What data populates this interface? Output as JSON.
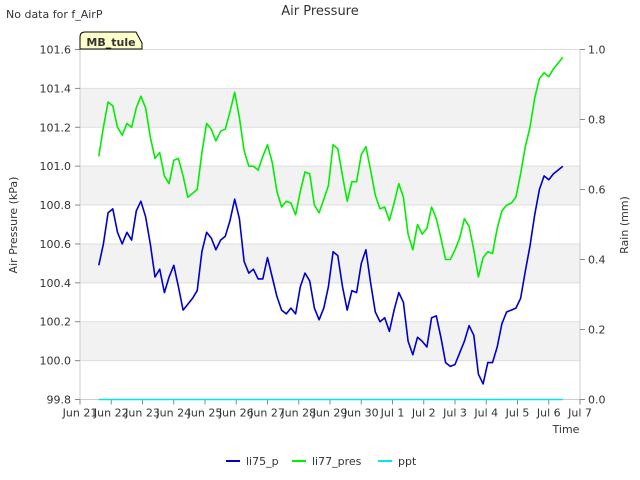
{
  "chart_data": {
    "type": "line",
    "title": "Air Pressure",
    "corner_note": "No data for f_AirP",
    "site_badge": "MB_tule",
    "xlabel": "Time",
    "ylabel_left": "Air Pressure (kPa)",
    "ylabel_right": "Rain (mm)",
    "x_range_days": [
      0,
      16
    ],
    "x_tick_days": [
      0,
      1,
      2,
      3,
      4,
      5,
      6,
      7,
      8,
      9,
      10,
      11,
      12,
      13,
      14,
      15,
      16
    ],
    "x_tick_labels": [
      "Jun 21",
      "Jun 22",
      "Jun 23",
      "Jun 24",
      "Jun 25",
      "Jun 26",
      "Jun 27",
      "Jun 28",
      "Jun 29",
      "Jun 30",
      "Jul 1",
      "Jul 2",
      "Jul 3",
      "Jul 4",
      "Jul 5",
      "Jul 6",
      "Jul 7"
    ],
    "ylim_left": [
      99.8,
      101.6
    ],
    "y_ticks_left": [
      "99.8",
      "100.0",
      "100.2",
      "100.4",
      "100.6",
      "100.8",
      "101.0",
      "101.2",
      "101.4",
      "101.6"
    ],
    "ylim_right": [
      0.0,
      1.0
    ],
    "y_ticks_right": [
      "0.0",
      "0.2",
      "0.4",
      "0.6",
      "0.8",
      "1.0"
    ],
    "legend_position": "bottom-center",
    "series": [
      {
        "name": "li75_p",
        "color": "#0000cc",
        "axis": "left",
        "x": [
          0.6,
          0.75,
          0.9,
          1.05,
          1.2,
          1.35,
          1.5,
          1.65,
          1.8,
          1.95,
          2.1,
          2.25,
          2.4,
          2.55,
          2.7,
          2.85,
          3.0,
          3.15,
          3.3,
          3.45,
          3.6,
          3.75,
          3.9,
          4.05,
          4.2,
          4.35,
          4.5,
          4.65,
          4.8,
          4.95,
          5.1,
          5.25,
          5.4,
          5.55,
          5.7,
          5.85,
          6.0,
          6.15,
          6.3,
          6.45,
          6.6,
          6.75,
          6.9,
          7.05,
          7.2,
          7.35,
          7.5,
          7.65,
          7.8,
          7.95,
          8.1,
          8.25,
          8.4,
          8.55,
          8.7,
          8.85,
          9.0,
          9.15,
          9.3,
          9.45,
          9.6,
          9.75,
          9.9,
          10.05,
          10.2,
          10.35,
          10.5,
          10.65,
          10.8,
          10.95,
          11.1,
          11.25,
          11.4,
          11.55,
          11.7,
          11.85,
          12.0,
          12.15,
          12.3,
          12.45,
          12.6,
          12.75,
          12.9,
          13.05,
          13.2,
          13.35,
          13.5,
          13.65,
          13.8,
          13.95,
          14.1,
          14.25,
          14.4,
          14.55,
          14.7,
          14.85,
          15.0,
          15.15,
          15.3,
          15.45
        ],
        "values": [
          100.49,
          100.6,
          100.76,
          100.78,
          100.66,
          100.6,
          100.66,
          100.62,
          100.77,
          100.82,
          100.74,
          100.6,
          100.43,
          100.47,
          100.35,
          100.43,
          100.49,
          100.38,
          100.26,
          100.29,
          100.32,
          100.36,
          100.56,
          100.66,
          100.63,
          100.57,
          100.62,
          100.64,
          100.72,
          100.83,
          100.73,
          100.51,
          100.45,
          100.47,
          100.42,
          100.42,
          100.53,
          100.43,
          100.33,
          100.26,
          100.24,
          100.27,
          100.24,
          100.38,
          100.45,
          100.41,
          100.27,
          100.21,
          100.27,
          100.38,
          100.56,
          100.54,
          100.38,
          100.26,
          100.36,
          100.35,
          100.5,
          100.57,
          100.4,
          100.25,
          100.2,
          100.22,
          100.15,
          100.26,
          100.35,
          100.3,
          100.1,
          100.03,
          100.12,
          100.1,
          100.07,
          100.22,
          100.23,
          100.12,
          99.99,
          99.97,
          99.98,
          100.04,
          100.1,
          100.18,
          100.13,
          99.93,
          99.88,
          99.99,
          99.99,
          100.07,
          100.19,
          100.25,
          100.26,
          100.27,
          100.32,
          100.46,
          100.59,
          100.75,
          100.88,
          100.95,
          100.93,
          100.96,
          100.98,
          101.0
        ]
      },
      {
        "name": "li77_pres",
        "color": "#00ee00",
        "axis": "left",
        "x": [
          0.6,
          0.75,
          0.9,
          1.05,
          1.2,
          1.35,
          1.5,
          1.65,
          1.8,
          1.95,
          2.1,
          2.25,
          2.4,
          2.55,
          2.7,
          2.85,
          3.0,
          3.15,
          3.3,
          3.45,
          3.6,
          3.75,
          3.9,
          4.05,
          4.2,
          4.35,
          4.5,
          4.65,
          4.8,
          4.95,
          5.1,
          5.25,
          5.4,
          5.55,
          5.7,
          5.85,
          6.0,
          6.15,
          6.3,
          6.45,
          6.6,
          6.75,
          6.9,
          7.05,
          7.2,
          7.35,
          7.5,
          7.65,
          7.8,
          7.95,
          8.1,
          8.25,
          8.4,
          8.55,
          8.7,
          8.85,
          9.0,
          9.15,
          9.3,
          9.45,
          9.6,
          9.75,
          9.9,
          10.05,
          10.2,
          10.35,
          10.5,
          10.65,
          10.8,
          10.95,
          11.1,
          11.25,
          11.4,
          11.55,
          11.7,
          11.85,
          12.0,
          12.15,
          12.3,
          12.45,
          12.6,
          12.75,
          12.9,
          13.05,
          13.2,
          13.35,
          13.5,
          13.65,
          13.8,
          13.95,
          14.1,
          14.25,
          14.4,
          14.55,
          14.7,
          14.85,
          15.0,
          15.15,
          15.3,
          15.45
        ],
        "values": [
          101.05,
          101.2,
          101.33,
          101.31,
          101.2,
          101.16,
          101.22,
          101.2,
          101.3,
          101.36,
          101.3,
          101.15,
          101.04,
          101.07,
          100.95,
          100.91,
          101.03,
          101.04,
          100.95,
          100.84,
          100.86,
          100.88,
          101.07,
          101.22,
          101.19,
          101.13,
          101.18,
          101.19,
          101.28,
          101.38,
          101.25,
          101.08,
          101.0,
          101.0,
          100.98,
          101.05,
          101.11,
          101.02,
          100.87,
          100.79,
          100.82,
          100.81,
          100.75,
          100.87,
          100.97,
          100.96,
          100.8,
          100.76,
          100.83,
          100.9,
          101.11,
          101.09,
          100.95,
          100.82,
          100.92,
          100.92,
          101.06,
          101.1,
          100.98,
          100.85,
          100.78,
          100.79,
          100.72,
          100.81,
          100.91,
          100.84,
          100.65,
          100.57,
          100.7,
          100.65,
          100.68,
          100.79,
          100.73,
          100.63,
          100.52,
          100.52,
          100.57,
          100.63,
          100.73,
          100.69,
          100.57,
          100.43,
          100.53,
          100.56,
          100.55,
          100.68,
          100.77,
          100.8,
          100.81,
          100.84,
          100.96,
          101.1,
          101.2,
          101.35,
          101.45,
          101.48,
          101.46,
          101.5,
          101.53,
          101.56
        ]
      },
      {
        "name": "ppt",
        "color": "#00e5ee",
        "axis": "right",
        "x": [
          0.6,
          15.45
        ],
        "values": [
          0.0,
          0.0
        ]
      }
    ]
  }
}
